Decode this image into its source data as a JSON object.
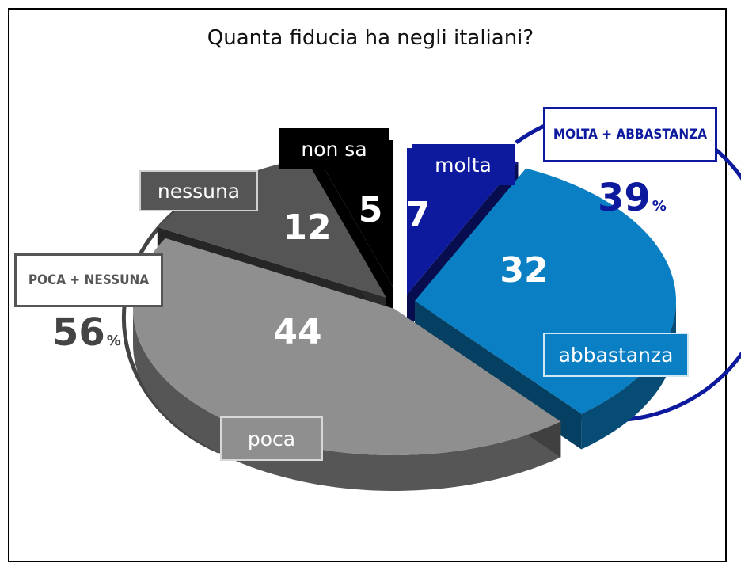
{
  "chart_data": {
    "type": "pie",
    "title": "Quanta fiducia ha negli italiani?",
    "unit": "%",
    "slices": [
      {
        "label": "molta",
        "value": 7,
        "color": "#0d1a9e"
      },
      {
        "label": "abbastanza",
        "value": 32,
        "color": "#0a7fc3"
      },
      {
        "label": "poca",
        "value": 44,
        "color": "#8f8f8f"
      },
      {
        "label": "nessuna",
        "value": 12,
        "color": "#555555"
      },
      {
        "label": "non sa",
        "value": 5,
        "color": "#000000"
      }
    ],
    "groups": [
      {
        "label": "MOLTA + ABBASTANZA",
        "total": 39,
        "color": "#0d1a9e"
      },
      {
        "label": "POCA + NESSUNA",
        "total": 56,
        "color": "#555555"
      }
    ]
  }
}
